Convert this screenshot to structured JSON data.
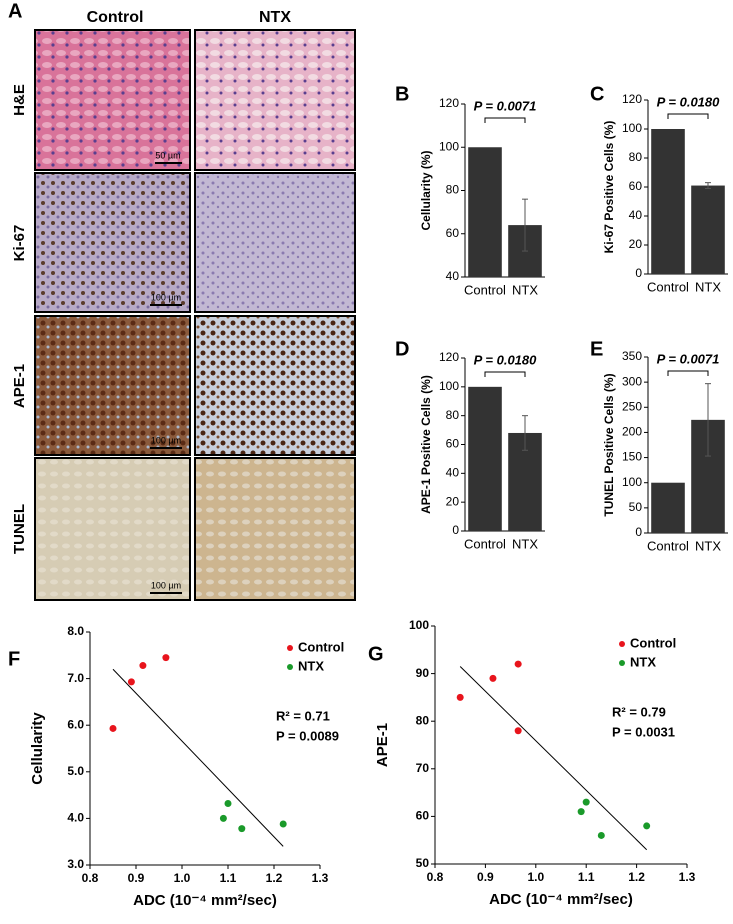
{
  "panel_a": {
    "label": "A",
    "columns": [
      "Control",
      "NTX"
    ],
    "rows": [
      "H&E",
      "Ki-67",
      "APE-1",
      "TUNEL"
    ],
    "scale_bars": [
      "50 µm",
      "100 µm",
      "100 µm",
      "100 µm"
    ]
  },
  "chart_data": [
    {
      "type": "bar",
      "label": "B",
      "ylabel": "Cellularity (%)",
      "categories": [
        "Control",
        "NTX"
      ],
      "values": [
        100,
        64
      ],
      "errors": [
        null,
        12
      ],
      "ylim": [
        40,
        120
      ],
      "yticks": [
        40,
        60,
        80,
        100,
        120
      ],
      "annotation": "P = 0.0071",
      "color": "#333333"
    },
    {
      "type": "bar",
      "label": "C",
      "ylabel": "Ki-67 Positive Cells (%)",
      "categories": [
        "Control",
        "NTX"
      ],
      "values": [
        100,
        61
      ],
      "errors": [
        null,
        2
      ],
      "ylim": [
        0,
        120
      ],
      "yticks": [
        0,
        20,
        40,
        60,
        80,
        100,
        120
      ],
      "annotation": "P = 0.0180",
      "color": "#333333"
    },
    {
      "type": "bar",
      "label": "D",
      "ylabel": "APE-1 Positive Cells (%)",
      "categories": [
        "Control",
        "NTX"
      ],
      "values": [
        100,
        68
      ],
      "errors": [
        null,
        12
      ],
      "ylim": [
        0,
        120
      ],
      "yticks": [
        0,
        20,
        40,
        60,
        80,
        100,
        120
      ],
      "annotation": "P = 0.0180",
      "color": "#333333"
    },
    {
      "type": "bar",
      "label": "E",
      "ylabel": "TUNEL Positive Cells (%)",
      "categories": [
        "Control",
        "NTX"
      ],
      "values": [
        100,
        225
      ],
      "errors": [
        null,
        72
      ],
      "ylim": [
        0,
        350
      ],
      "yticks": [
        0,
        50,
        100,
        150,
        200,
        250,
        300,
        350
      ],
      "annotation": "P = 0.0071",
      "color": "#333333"
    },
    {
      "type": "scatter",
      "label": "F",
      "xlabel": "ADC (10⁻⁴ mm²/sec)",
      "ylabel": "Cellularity",
      "series": [
        {
          "name": "Control",
          "color": "#e8141c",
          "x": [
            0.85,
            0.89,
            0.915,
            0.965
          ],
          "y": [
            5.93,
            6.93,
            7.28,
            7.45
          ]
        },
        {
          "name": "NTX",
          "color": "#1a9a2a",
          "x": [
            1.09,
            1.1,
            1.13,
            1.22
          ],
          "y": [
            4.0,
            4.32,
            3.78,
            3.88
          ]
        }
      ],
      "trendline": {
        "x": [
          0.85,
          1.22
        ],
        "y": [
          7.2,
          3.4
        ]
      },
      "xlim": [
        0.8,
        1.3
      ],
      "xticks": [
        0.8,
        0.9,
        {
          "value": 1,
          "label": "1.0"
        },
        1.1,
        1.2,
        1.3
      ],
      "ylim": [
        3,
        8
      ],
      "yticks": [
        {
          "value": 3,
          "label": "3.0"
        },
        {
          "value": 4,
          "label": "4.0"
        },
        {
          "value": 5,
          "label": "5.0"
        },
        {
          "value": 6,
          "label": "6.0"
        },
        {
          "value": 7,
          "label": "7.0"
        },
        {
          "value": 8,
          "label": "8.0"
        }
      ],
      "annotations": [
        "R² = 0.71",
        "P  =  0.0089"
      ]
    },
    {
      "type": "scatter",
      "label": "G",
      "xlabel": "ADC (10⁻⁴ mm²/sec)",
      "ylabel": "APE-1",
      "series": [
        {
          "name": "Control",
          "color": "#e8141c",
          "x": [
            0.85,
            0.915,
            0.965,
            0.965
          ],
          "y": [
            85,
            89,
            92,
            78
          ]
        },
        {
          "name": "NTX",
          "color": "#1a9a2a",
          "x": [
            1.09,
            1.1,
            1.13,
            1.22
          ],
          "y": [
            61,
            63,
            56,
            58
          ]
        }
      ],
      "trendline": {
        "x": [
          0.85,
          1.22
        ],
        "y": [
          91.5,
          53
        ]
      },
      "xlim": [
        0.8,
        1.3
      ],
      "xticks": [
        0.8,
        0.9,
        {
          "value": 1,
          "label": "1.0"
        },
        1.1,
        1.2,
        1.3
      ],
      "ylim": [
        50,
        100
      ],
      "yticks": [
        50,
        60,
        70,
        80,
        90,
        100
      ],
      "annotations": [
        "R² = 0.79",
        "P  =  0.0031"
      ]
    }
  ]
}
